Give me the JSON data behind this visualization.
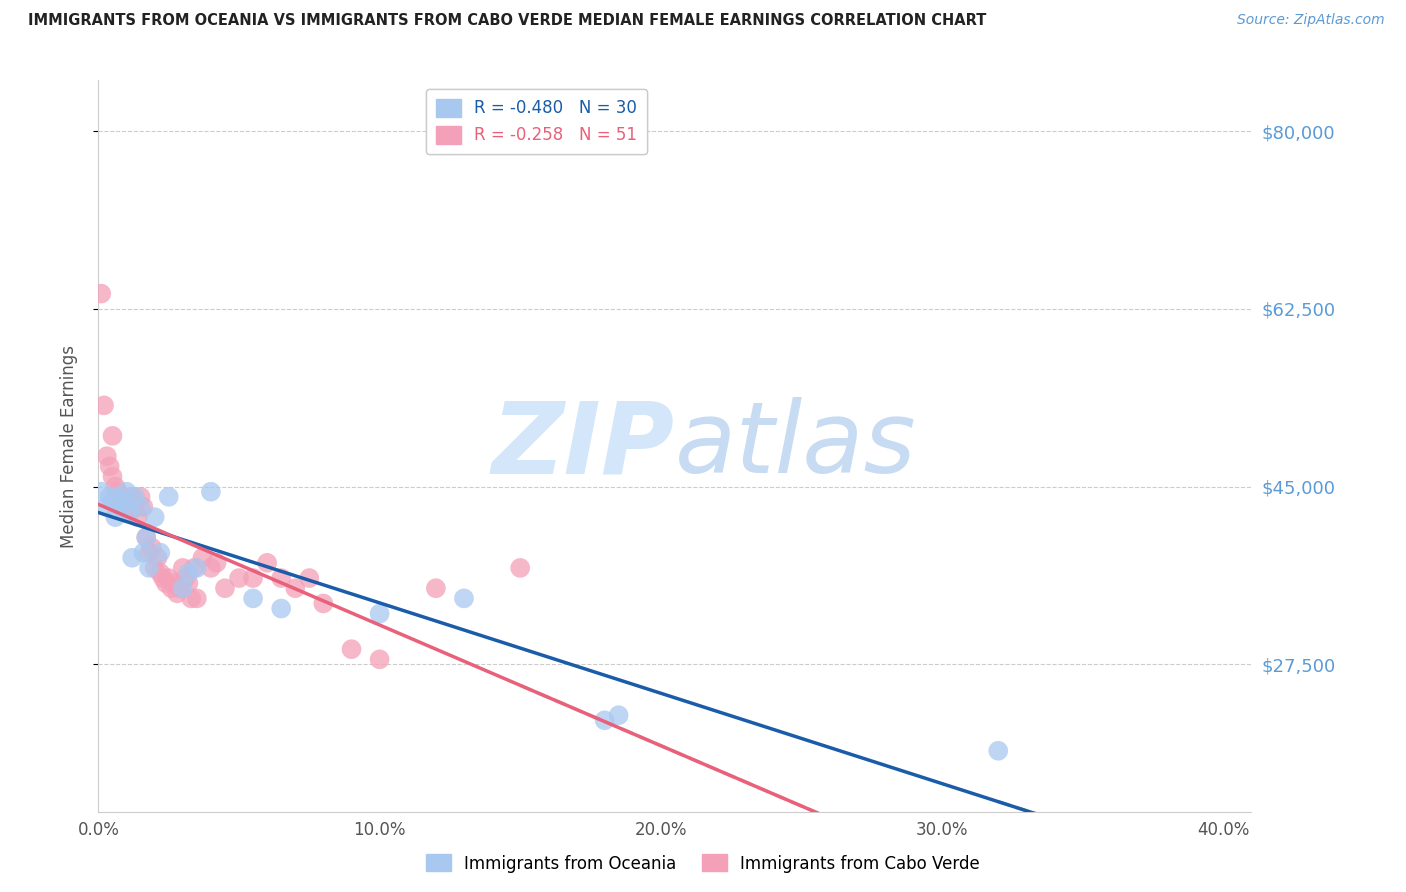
{
  "title": "IMMIGRANTS FROM OCEANIA VS IMMIGRANTS FROM CABO VERDE MEDIAN FEMALE EARNINGS CORRELATION CHART",
  "source": "Source: ZipAtlas.com",
  "ylabel": "Median Female Earnings",
  "ytick_labels": [
    "$80,000",
    "$62,500",
    "$45,000",
    "$27,500"
  ],
  "ytick_values": [
    80000,
    62500,
    45000,
    27500
  ],
  "ylim": [
    13000,
    85000
  ],
  "xlim": [
    0.0,
    0.41
  ],
  "watermark_zip": "ZIP",
  "watermark_atlas": "atlas",
  "legend_oceania": "R = -0.480   N = 30",
  "legend_cabo": "R = -0.258   N = 51",
  "legend_label_oceania": "Immigrants from Oceania",
  "legend_label_cabo": "Immigrants from Cabo Verde",
  "color_oceania": "#A8C8F0",
  "color_cabo": "#F4A0B8",
  "color_line_oceania": "#1A5CA8",
  "color_line_cabo": "#E8607A",
  "color_yticks": "#5B9BD5",
  "color_source": "#5B9BD5",
  "oceania_x": [
    0.001,
    0.003,
    0.004,
    0.005,
    0.006,
    0.007,
    0.008,
    0.009,
    0.01,
    0.011,
    0.012,
    0.013,
    0.015,
    0.016,
    0.017,
    0.018,
    0.02,
    0.022,
    0.025,
    0.03,
    0.032,
    0.035,
    0.04,
    0.055,
    0.065,
    0.1,
    0.13,
    0.18,
    0.185,
    0.32
  ],
  "oceania_y": [
    44500,
    43000,
    44000,
    43500,
    42000,
    44000,
    43000,
    43500,
    44500,
    42500,
    38000,
    44000,
    43000,
    38500,
    40000,
    37000,
    42000,
    38500,
    44000,
    35000,
    36500,
    37000,
    44500,
    34000,
    33000,
    32500,
    34000,
    22000,
    22500,
    19000
  ],
  "cabo_x": [
    0.001,
    0.002,
    0.003,
    0.004,
    0.005,
    0.005,
    0.006,
    0.007,
    0.008,
    0.009,
    0.01,
    0.011,
    0.012,
    0.013,
    0.014,
    0.015,
    0.016,
    0.017,
    0.018,
    0.019,
    0.02,
    0.021,
    0.022,
    0.023,
    0.024,
    0.025,
    0.026,
    0.027,
    0.028,
    0.029,
    0.03,
    0.031,
    0.032,
    0.033,
    0.034,
    0.035,
    0.037,
    0.04,
    0.042,
    0.045,
    0.05,
    0.055,
    0.06,
    0.065,
    0.07,
    0.075,
    0.08,
    0.09,
    0.1,
    0.12,
    0.15
  ],
  "cabo_y": [
    64000,
    53000,
    48000,
    47000,
    46000,
    50000,
    45000,
    44500,
    43000,
    44000,
    43000,
    42500,
    44000,
    43000,
    42000,
    44000,
    43000,
    40000,
    38500,
    39000,
    37000,
    38000,
    36500,
    36000,
    35500,
    36000,
    35000,
    35500,
    34500,
    35000,
    37000,
    36000,
    35500,
    34000,
    37000,
    34000,
    38000,
    37000,
    37500,
    35000,
    36000,
    36000,
    37500,
    36000,
    35000,
    36000,
    33500,
    29000,
    28000,
    35000,
    37000
  ]
}
